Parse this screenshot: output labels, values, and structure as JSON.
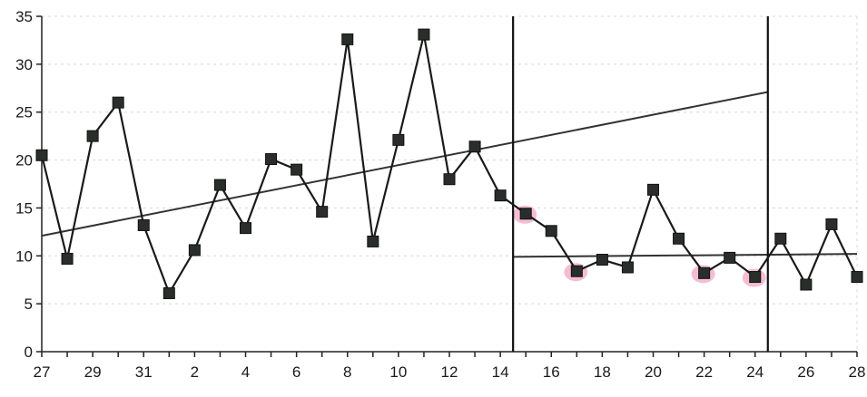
{
  "chart_data": {
    "type": "line",
    "title": "",
    "xlabel": "",
    "ylabel": "",
    "ylim": [
      0,
      35
    ],
    "y_ticks": [
      "0",
      "5",
      "10",
      "15",
      "20",
      "25",
      "30",
      "35"
    ],
    "x_tick_labels": [
      "27",
      "29",
      "31",
      "2",
      "4",
      "6",
      "8",
      "10",
      "12",
      "14",
      "16",
      "18",
      "20",
      "22",
      "24",
      "26",
      "28"
    ],
    "grid": true,
    "legend": "none",
    "series": [
      {
        "x": [
          "27",
          "28",
          "29",
          "30",
          "31",
          "1",
          "2",
          "3",
          "4",
          "5",
          "6",
          "7",
          "8",
          "9",
          "10",
          "11",
          "12",
          "13",
          "14",
          "15",
          "16",
          "17",
          "18",
          "19",
          "20",
          "21",
          "22",
          "23",
          "24",
          "25",
          "26",
          "27",
          "28"
        ],
        "values": [
          20.5,
          9.7,
          22.5,
          26,
          13.2,
          6.1,
          10.6,
          17.4,
          12.9,
          20.1,
          19,
          14.6,
          32.6,
          11.5,
          22.1,
          33.1,
          18,
          21.4,
          16.3,
          14.4,
          12.6,
          8.4,
          9.6,
          8.8,
          16.9,
          11.8,
          8.2,
          9.8,
          7.8,
          11.8,
          7,
          13.3,
          7.8
        ]
      }
    ],
    "trend_lines": [
      {
        "from_index": 0,
        "to_index": 28.5,
        "start_value": 12.1,
        "end_value": 27.1
      },
      {
        "from_index": 18.5,
        "to_index": 32,
        "start_value": 9.9,
        "end_value": 10.2
      }
    ],
    "vertical_markers": [
      18.5,
      28.5
    ],
    "highlighted_points": [
      19,
      21,
      26,
      28
    ],
    "colors": {
      "line": "#1a1a1a",
      "marker": "#2a2e2b",
      "highlight": "#f2a7c4"
    }
  }
}
